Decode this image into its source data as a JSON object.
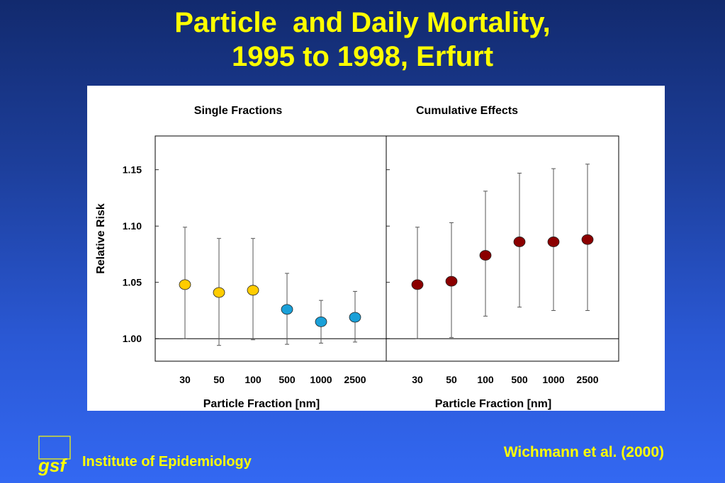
{
  "slide": {
    "title_line1": "Particle  and Daily Mortality,",
    "title_line2": "1995 to 1998, Erfurt",
    "institute": "Institute of Epidemiology",
    "citation": "Wichmann et al. (2000)",
    "logo_text": "gsf",
    "text_color": "#ffff00"
  },
  "chart_data": [
    {
      "type": "scatter",
      "title": "Single Fractions",
      "xlabel": "Particle Fraction [nm]",
      "ylabel": "Relative Risk",
      "categories": [
        "30",
        "50",
        "100",
        "500",
        "1000",
        "2500"
      ],
      "values": [
        1.048,
        1.041,
        1.043,
        1.026,
        1.015,
        1.019
      ],
      "ci_lower": [
        1.0,
        0.994,
        0.999,
        0.995,
        0.996,
        0.997
      ],
      "ci_upper": [
        1.099,
        1.089,
        1.089,
        1.058,
        1.034,
        1.042
      ],
      "point_colors": [
        "#ffcc00",
        "#ffcc00",
        "#ffcc00",
        "#1aa0d8",
        "#1aa0d8",
        "#1aa0d8"
      ],
      "ylim": [
        0.98,
        1.18
      ],
      "yticks": [
        "1.00",
        "1.05",
        "1.10",
        "1.15"
      ],
      "reference_line": 1.0
    },
    {
      "type": "scatter",
      "title": "Cumulative Effects",
      "xlabel": "Particle Fraction [nm]",
      "ylabel": "",
      "categories": [
        "30",
        "50",
        "100",
        "500",
        "1000",
        "2500"
      ],
      "values": [
        1.048,
        1.051,
        1.074,
        1.086,
        1.086,
        1.088
      ],
      "ci_lower": [
        1.0,
        1.001,
        1.02,
        1.028,
        1.025,
        1.025
      ],
      "ci_upper": [
        1.099,
        1.103,
        1.131,
        1.147,
        1.151,
        1.155
      ],
      "point_colors": [
        "#8b0000",
        "#8b0000",
        "#8b0000",
        "#8b0000",
        "#8b0000",
        "#8b0000"
      ],
      "ylim": [
        0.98,
        1.18
      ],
      "yticks": [],
      "reference_line": 1.0
    }
  ]
}
